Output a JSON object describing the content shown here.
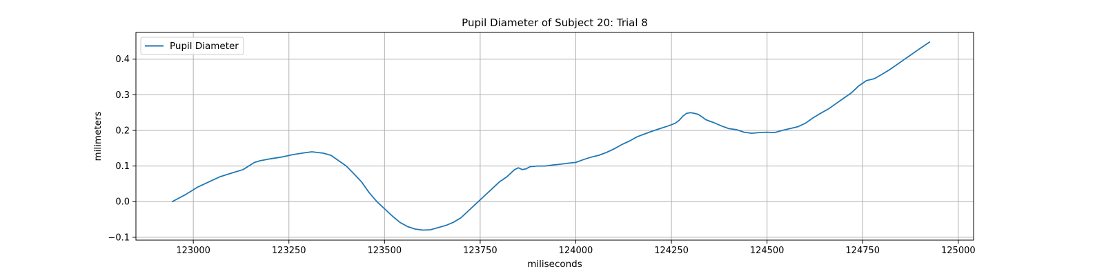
{
  "chart_data": {
    "type": "line",
    "title": "Pupil Diameter of Subject 20: Trial 8",
    "xlabel": "miliseconds",
    "ylabel": "milimeters",
    "xlim": [
      122850,
      125040
    ],
    "ylim": [
      -0.108,
      0.475
    ],
    "xticks": [
      123000,
      123250,
      123500,
      123750,
      124000,
      124250,
      124500,
      124750,
      125000
    ],
    "yticks": [
      -0.1,
      0.0,
      0.1,
      0.2,
      0.3,
      0.4
    ],
    "ytick_labels": [
      "−0.1",
      "0.0",
      "0.1",
      "0.2",
      "0.3",
      "0.4"
    ],
    "grid": true,
    "legend": "upper-left",
    "series": [
      {
        "name": "Pupil Diameter",
        "color": "#1f77b4",
        "x": [
          122945,
          122980,
          123010,
          123040,
          123070,
          123100,
          123130,
          123160,
          123175,
          123200,
          123230,
          123260,
          123290,
          123310,
          123340,
          123360,
          123380,
          123400,
          123420,
          123440,
          123460,
          123480,
          123500,
          123520,
          123540,
          123560,
          123580,
          123600,
          123620,
          123640,
          123660,
          123680,
          123700,
          123720,
          123740,
          123760,
          123780,
          123800,
          123820,
          123840,
          123850,
          123860,
          123870,
          123880,
          123900,
          123920,
          123940,
          123960,
          123980,
          124000,
          124020,
          124040,
          124060,
          124080,
          124100,
          124120,
          124140,
          124160,
          124180,
          124200,
          124220,
          124240,
          124260,
          124270,
          124280,
          124290,
          124300,
          124310,
          124320,
          124330,
          124340,
          124360,
          124380,
          124400,
          124420,
          124440,
          124460,
          124480,
          124500,
          124520,
          124540,
          124560,
          124580,
          124600,
          124620,
          124640,
          124660,
          124680,
          124700,
          124720,
          124740,
          124760,
          124780,
          124800,
          124820,
          124840,
          124860,
          124880,
          124900,
          124925
        ],
        "y": [
          0.0,
          0.02,
          0.04,
          0.055,
          0.07,
          0.08,
          0.09,
          0.11,
          0.115,
          0.12,
          0.125,
          0.132,
          0.137,
          0.14,
          0.136,
          0.13,
          0.115,
          0.1,
          0.078,
          0.055,
          0.025,
          0.0,
          -0.02,
          -0.04,
          -0.058,
          -0.07,
          -0.077,
          -0.08,
          -0.079,
          -0.073,
          -0.067,
          -0.058,
          -0.045,
          -0.025,
          -0.005,
          0.015,
          0.035,
          0.055,
          0.07,
          0.09,
          0.095,
          0.09,
          0.092,
          0.098,
          0.1,
          0.1,
          0.103,
          0.105,
          0.108,
          0.11,
          0.118,
          0.125,
          0.13,
          0.138,
          0.148,
          0.16,
          0.17,
          0.182,
          0.19,
          0.198,
          0.205,
          0.212,
          0.22,
          0.228,
          0.24,
          0.248,
          0.25,
          0.248,
          0.245,
          0.238,
          0.23,
          0.222,
          0.213,
          0.205,
          0.202,
          0.195,
          0.192,
          0.194,
          0.195,
          0.194,
          0.2,
          0.205,
          0.21,
          0.22,
          0.235,
          0.248,
          0.26,
          0.275,
          0.29,
          0.305,
          0.325,
          0.34,
          0.345,
          0.357,
          0.37,
          0.385,
          0.4,
          0.415,
          0.43,
          0.448
        ]
      }
    ]
  }
}
